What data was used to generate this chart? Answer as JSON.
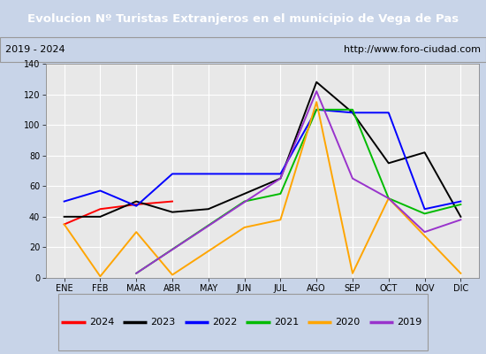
{
  "title": "Evolucion Nº Turistas Extranjeros en el municipio de Vega de Pas",
  "subtitle_left": "2019 - 2024",
  "subtitle_right": "http://www.foro-ciudad.com",
  "months": [
    "ENE",
    "FEB",
    "MAR",
    "ABR",
    "MAY",
    "JUN",
    "JUL",
    "AGO",
    "SEP",
    "OCT",
    "NOV",
    "DIC"
  ],
  "series": {
    "2024": [
      35,
      45,
      48,
      50,
      null,
      null,
      null,
      null,
      null,
      null,
      null,
      null
    ],
    "2023": [
      40,
      40,
      50,
      43,
      45,
      55,
      65,
      128,
      108,
      75,
      82,
      40
    ],
    "2022": [
      50,
      57,
      47,
      68,
      68,
      68,
      68,
      110,
      108,
      108,
      45,
      50
    ],
    "2021": [
      null,
      null,
      3,
      null,
      null,
      50,
      55,
      110,
      110,
      52,
      42,
      48
    ],
    "2020": [
      35,
      1,
      30,
      2,
      null,
      33,
      38,
      115,
      3,
      52,
      null,
      3
    ],
    "2019": [
      null,
      null,
      3,
      null,
      null,
      null,
      65,
      122,
      65,
      52,
      30,
      38
    ]
  },
  "colors": {
    "2024": "#ff0000",
    "2023": "#000000",
    "2022": "#0000ff",
    "2021": "#00bb00",
    "2020": "#ffa500",
    "2019": "#9933cc"
  },
  "ylim": [
    0,
    140
  ],
  "yticks": [
    0,
    20,
    40,
    60,
    80,
    100,
    120,
    140
  ],
  "title_bg_color": "#4a86c8",
  "title_text_color": "#ffffff",
  "plot_bg_color": "#e8e8e8",
  "outer_bg_color": "#c8d4e8",
  "subtitle_bg_color": "#f0f0f0",
  "grid_color": "#ffffff",
  "legend_bg_color": "#f0f0f0"
}
